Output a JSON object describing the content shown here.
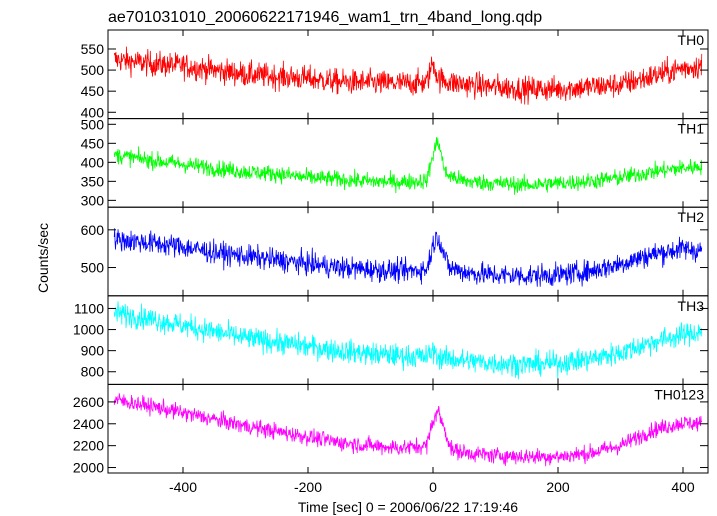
{
  "figure": {
    "title": "ae701031010_20060622171946_wam1_trn_4band_long.qdp",
    "xlabel": "Time [sec] 0 = 2006/06/22 17:19:46",
    "ylabel": "Counts/sec"
  },
  "chart_data": [
    {
      "type": "line",
      "name": "TH0",
      "color": "#ff0000",
      "xlim": [
        -520,
        440
      ],
      "ylim": [
        385,
        595
      ],
      "x_ticks": [
        -400,
        -200,
        0,
        200,
        400
      ],
      "y_ticks": [
        400,
        450,
        500,
        550
      ],
      "x": [
        -510,
        -450,
        -400,
        -350,
        -300,
        -250,
        -200,
        -150,
        -100,
        -50,
        -10,
        0,
        8,
        30,
        60,
        100,
        150,
        200,
        250,
        300,
        350,
        400,
        430
      ],
      "y": [
        525,
        515,
        510,
        500,
        490,
        485,
        480,
        472,
        470,
        468,
        470,
        520,
        480,
        470,
        465,
        460,
        455,
        455,
        460,
        465,
        485,
        505,
        510
      ],
      "noise": 30
    },
    {
      "type": "line",
      "name": "TH1",
      "color": "#00ff00",
      "xlim": [
        -520,
        440
      ],
      "ylim": [
        282,
        515
      ],
      "x_ticks": [
        -400,
        -200,
        0,
        200,
        400
      ],
      "y_ticks": [
        300,
        350,
        400,
        450,
        500
      ],
      "x": [
        -510,
        -450,
        -400,
        -350,
        -300,
        -250,
        -200,
        -150,
        -100,
        -50,
        -10,
        0,
        8,
        20,
        50,
        100,
        150,
        200,
        250,
        300,
        350,
        400,
        430
      ],
      "y": [
        420,
        405,
        395,
        385,
        375,
        370,
        360,
        355,
        350,
        348,
        352,
        420,
        460,
        370,
        350,
        345,
        340,
        345,
        350,
        360,
        375,
        385,
        390
      ],
      "noise": 22
    },
    {
      "type": "line",
      "name": "TH2",
      "color": "#0000ff",
      "xlim": [
        -520,
        440
      ],
      "ylim": [
        425,
        660
      ],
      "x_ticks": [
        -400,
        -200,
        0,
        200,
        400
      ],
      "y_ticks": [
        500,
        600
      ],
      "x": [
        -510,
        -450,
        -400,
        -350,
        -300,
        -250,
        -200,
        -150,
        -100,
        -50,
        -10,
        0,
        8,
        25,
        60,
        100,
        150,
        200,
        250,
        300,
        350,
        400,
        430
      ],
      "y": [
        575,
        565,
        555,
        540,
        530,
        520,
        510,
        500,
        495,
        490,
        495,
        560,
        585,
        500,
        485,
        480,
        478,
        480,
        490,
        510,
        535,
        550,
        545
      ],
      "noise": 30
    },
    {
      "type": "line",
      "name": "TH3",
      "color": "#00ffff",
      "xlim": [
        -520,
        440
      ],
      "ylim": [
        740,
        1160
      ],
      "x_ticks": [
        -400,
        -200,
        0,
        200,
        400
      ],
      "y_ticks": [
        800,
        900,
        1000,
        1100
      ],
      "x": [
        -510,
        -450,
        -400,
        -350,
        -300,
        -250,
        -200,
        -150,
        -100,
        -50,
        -10,
        0,
        8,
        30,
        60,
        100,
        150,
        200,
        250,
        300,
        350,
        400,
        430
      ],
      "y": [
        1080,
        1050,
        1020,
        990,
        960,
        940,
        920,
        900,
        885,
        875,
        870,
        900,
        870,
        860,
        850,
        840,
        835,
        840,
        860,
        890,
        940,
        975,
        990
      ],
      "noise": 55
    },
    {
      "type": "line",
      "name": "TH0123",
      "color": "#ff00ff",
      "xlim": [
        -520,
        440
      ],
      "ylim": [
        1950,
        2760
      ],
      "x_ticks": [
        -400,
        -200,
        0,
        200,
        400
      ],
      "y_ticks": [
        2000,
        2200,
        2400,
        2600
      ],
      "x": [
        -510,
        -450,
        -400,
        -350,
        -300,
        -250,
        -200,
        -150,
        -100,
        -50,
        -10,
        0,
        8,
        30,
        60,
        100,
        150,
        200,
        250,
        300,
        350,
        400,
        430
      ],
      "y": [
        2620,
        2560,
        2500,
        2440,
        2380,
        2330,
        2280,
        2230,
        2200,
        2180,
        2200,
        2430,
        2520,
        2160,
        2130,
        2110,
        2100,
        2100,
        2130,
        2200,
        2340,
        2410,
        2400
      ],
      "noise": 75
    }
  ]
}
